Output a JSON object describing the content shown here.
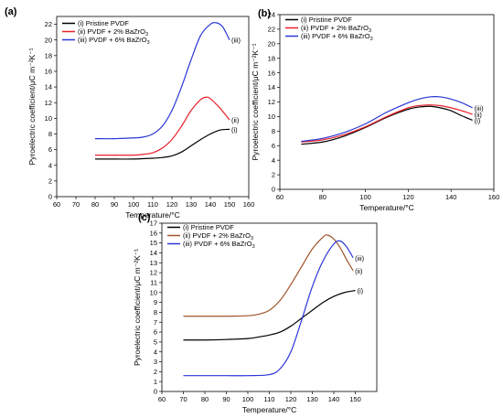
{
  "chart_data": [
    {
      "panel": "(a)",
      "type": "line",
      "xlabel": "Temperature/°C",
      "ylabel": "Pyroelectric coefficient/μC m⁻²K⁻¹",
      "xlim": [
        60,
        160
      ],
      "ylim": [
        0,
        23
      ],
      "xticks": [
        60,
        70,
        80,
        90,
        100,
        110,
        120,
        130,
        140,
        150,
        160
      ],
      "yticks": [
        0,
        2,
        4,
        6,
        8,
        10,
        12,
        14,
        16,
        18,
        20,
        22
      ],
      "legend": "top-left",
      "series": [
        {
          "name": "(i) Pristine PVDF",
          "label": "(i)",
          "color": "#000000",
          "x": [
            80,
            90,
            100,
            110,
            115,
            120,
            125,
            130,
            135,
            140,
            145,
            150
          ],
          "y": [
            4.8,
            4.8,
            4.8,
            4.9,
            5.0,
            5.2,
            5.7,
            6.5,
            7.3,
            8.0,
            8.5,
            8.6
          ]
        },
        {
          "name": "(ii) PVDF + 2% BaZrO3",
          "label": "(ii)",
          "color": "#e8202a",
          "x": [
            80,
            90,
            100,
            105,
            110,
            115,
            120,
            125,
            130,
            135,
            138,
            140,
            145,
            150
          ],
          "y": [
            5.3,
            5.3,
            5.3,
            5.4,
            5.6,
            6.2,
            7.3,
            9.0,
            11.0,
            12.4,
            12.7,
            12.5,
            11.3,
            9.8
          ]
        },
        {
          "name": "(iii) PVDF + 6% BaZrO3",
          "label": "(iii)",
          "color": "#2a36d6",
          "x": [
            80,
            90,
            100,
            105,
            110,
            115,
            120,
            125,
            130,
            135,
            140,
            143,
            146,
            148,
            150
          ],
          "y": [
            7.4,
            7.4,
            7.5,
            7.6,
            8.0,
            9.0,
            11.0,
            14.0,
            17.5,
            20.6,
            22.0,
            22.2,
            21.8,
            21.0,
            20.0
          ]
        }
      ]
    },
    {
      "panel": "(b)",
      "type": "line",
      "xlabel": "Temperature/°C",
      "ylabel": "Pyroelectric coefficient/μC m⁻²K⁻¹",
      "xlim": [
        60,
        160
      ],
      "ylim": [
        0,
        24
      ],
      "xticks": [
        60,
        80,
        100,
        120,
        140,
        160
      ],
      "yticks": [
        0,
        2,
        4,
        6,
        8,
        10,
        12,
        14,
        16,
        18,
        20,
        22,
        24
      ],
      "legend": "top-left",
      "series": [
        {
          "name": "(i) Pristine PVDF",
          "label": "(i)",
          "color": "#000000",
          "x": [
            70,
            80,
            90,
            100,
            110,
            120,
            125,
            130,
            135,
            140,
            145,
            150
          ],
          "y": [
            6.2,
            6.5,
            7.3,
            8.5,
            9.9,
            11.0,
            11.3,
            11.4,
            11.2,
            10.8,
            10.1,
            9.5
          ]
        },
        {
          "name": "(ii) PVDF + 2% BaZrO3",
          "label": "(ii)",
          "color": "#e8202a",
          "x": [
            70,
            80,
            90,
            100,
            110,
            120,
            125,
            130,
            135,
            140,
            145,
            150
          ],
          "y": [
            6.5,
            6.8,
            7.5,
            8.6,
            10.0,
            11.2,
            11.5,
            11.6,
            11.5,
            11.2,
            10.8,
            10.3
          ]
        },
        {
          "name": "(iii) PVDF + 6% BaZrO3",
          "label": "(iii)",
          "color": "#2a36d6",
          "x": [
            70,
            80,
            90,
            100,
            110,
            120,
            125,
            130,
            135,
            140,
            145,
            150
          ],
          "y": [
            6.6,
            7.0,
            7.8,
            9.0,
            10.6,
            11.9,
            12.4,
            12.7,
            12.7,
            12.4,
            11.9,
            11.2
          ]
        }
      ]
    },
    {
      "panel": "(c)",
      "type": "line",
      "xlabel": "Temperature/°C",
      "ylabel": "Pyroelectric coefficient/μC m⁻²K⁻¹",
      "xlim": [
        60,
        160
      ],
      "ylim": [
        0,
        17
      ],
      "xticks": [
        60,
        70,
        80,
        90,
        100,
        110,
        120,
        130,
        140,
        150
      ],
      "yticks": [
        0,
        1,
        2,
        3,
        4,
        5,
        6,
        7,
        8,
        9,
        10,
        11,
        12,
        13,
        14,
        15,
        16,
        17
      ],
      "legend": "top-left",
      "series": [
        {
          "name": "(i) Pristine PVDF",
          "label": "(i)",
          "color": "#000000",
          "x": [
            70,
            80,
            90,
            100,
            105,
            110,
            115,
            120,
            125,
            130,
            135,
            140,
            145,
            150
          ],
          "y": [
            5.2,
            5.2,
            5.25,
            5.35,
            5.5,
            5.7,
            6.0,
            6.6,
            7.4,
            8.2,
            9.0,
            9.6,
            10.0,
            10.2
          ]
        },
        {
          "name": "(ii) PVDF + 2% BaZrO3",
          "label": "(ii)",
          "color": "#a0552a",
          "x": [
            70,
            80,
            90,
            100,
            105,
            110,
            115,
            120,
            125,
            130,
            135,
            137,
            140,
            143,
            146,
            149
          ],
          "y": [
            7.6,
            7.6,
            7.6,
            7.65,
            7.8,
            8.2,
            9.2,
            10.8,
            12.6,
            14.4,
            15.6,
            15.8,
            15.4,
            14.5,
            13.3,
            12.2
          ]
        },
        {
          "name": "(iii) PVDF + 6% BaZrO3",
          "label": "(iii)",
          "color": "#2a36d6",
          "x": [
            70,
            80,
            90,
            100,
            110,
            115,
            120,
            125,
            130,
            135,
            140,
            143,
            146,
            149
          ],
          "y": [
            1.6,
            1.6,
            1.6,
            1.6,
            1.7,
            2.3,
            4.0,
            7.2,
            10.6,
            13.2,
            14.9,
            15.2,
            14.6,
            13.5
          ]
        }
      ]
    }
  ]
}
